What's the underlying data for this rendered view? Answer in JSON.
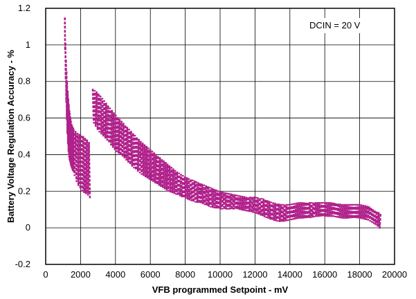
{
  "chart_data": {
    "type": "line",
    "xlabel": "VFB programmed Setpoint - mV",
    "ylabel": "Battery Voltage Regulation Accuracy - %",
    "xlim": [
      0,
      20000
    ],
    "ylim": [
      -0.2,
      1.2
    ],
    "xticks": [
      0,
      2000,
      4000,
      6000,
      8000,
      10000,
      12000,
      14000,
      16000,
      18000,
      20000
    ],
    "yticks": [
      -0.2,
      0,
      0.2,
      0.4,
      0.6,
      0.8,
      1,
      1.2
    ],
    "xtick_labels": [
      "0",
      "2000",
      "4000",
      "6000",
      "8000",
      "10000",
      "12000",
      "14000",
      "16000",
      "18000",
      "20000"
    ],
    "ytick_labels": [
      "-0.2",
      "0",
      "0.2",
      "0.4",
      "0.6",
      "0.8",
      "1",
      "1.2"
    ],
    "grid": true,
    "annotation": "DCIN = 20 V",
    "series_color": "#B0208A",
    "series": [
      {
        "style": "dashed",
        "segments": [
          {
            "x": [
              1100,
              1130,
              1160,
              1200,
              1240,
              1280,
              1320,
              1360,
              1400,
              1440,
              1480,
              1520,
              1560,
              1600
            ],
            "y_upper": [
              1.15,
              1.02,
              0.93,
              0.85,
              0.78,
              0.72,
              0.68,
              0.64,
              0.62,
              0.59,
              0.57,
              0.56,
              0.55,
              0.54
            ],
            "y_lower": [
              1.05,
              0.9,
              0.75,
              0.62,
              0.52,
              0.45,
              0.4,
              0.37,
              0.36,
              0.34,
              0.33,
              0.32,
              0.31,
              0.3
            ]
          },
          {
            "x": [
              1600,
              1800,
              2000,
              2200,
              2400,
              2550
            ],
            "y_upper": [
              0.54,
              0.52,
              0.51,
              0.5,
              0.48,
              0.46
            ],
            "y_lower": [
              0.3,
              0.24,
              0.21,
              0.19,
              0.18,
              0.16
            ]
          },
          {
            "x": [
              2700,
              3000,
              3500,
              4000,
              4500,
              5000,
              5500,
              6000,
              6500,
              7000,
              7500,
              8000,
              8500,
              9000,
              9500,
              10000,
              10500,
              11000,
              11500,
              12000,
              12500,
              13000,
              13500,
              14000,
              14500,
              15000,
              15500,
              16000,
              16500,
              17000,
              17500,
              18000,
              18500,
              19000,
              19200
            ],
            "y_upper": [
              0.76,
              0.74,
              0.68,
              0.62,
              0.57,
              0.52,
              0.47,
              0.43,
              0.39,
              0.35,
              0.31,
              0.28,
              0.26,
              0.24,
              0.22,
              0.2,
              0.19,
              0.18,
              0.17,
              0.17,
              0.16,
              0.14,
              0.13,
              0.13,
              0.14,
              0.14,
              0.14,
              0.14,
              0.14,
              0.13,
              0.13,
              0.13,
              0.12,
              0.09,
              0.08
            ],
            "y_lower": [
              0.58,
              0.53,
              0.48,
              0.42,
              0.38,
              0.33,
              0.29,
              0.26,
              0.23,
              0.2,
              0.18,
              0.16,
              0.14,
              0.13,
              0.11,
              0.1,
              0.1,
              0.1,
              0.09,
              0.08,
              0.06,
              0.04,
              0.03,
              0.04,
              0.05,
              0.05,
              0.06,
              0.06,
              0.06,
              0.05,
              0.05,
              0.05,
              0.04,
              0.01,
              -0.01
            ]
          }
        ]
      }
    ]
  }
}
